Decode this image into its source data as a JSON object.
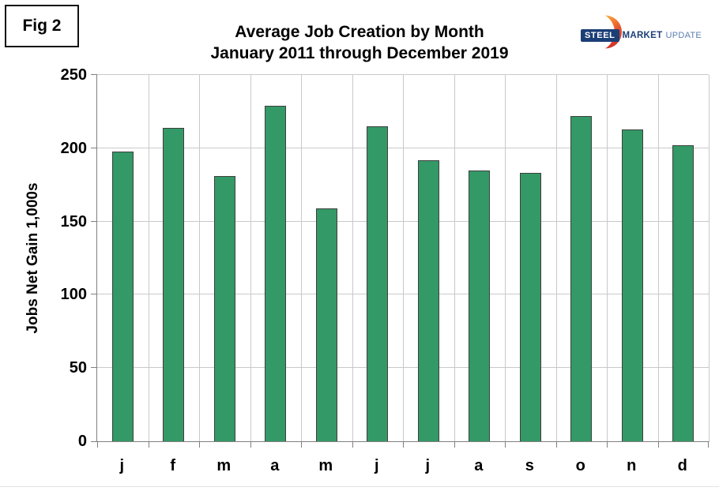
{
  "figure_label": "Fig 2",
  "logo": {
    "steel": "STEEL",
    "market": "MARKET",
    "update": "UPDATE",
    "navy": "#1c3e76",
    "light_blue": "#5b7db1",
    "orange_top": "#f6a63b",
    "orange_bottom": "#cf2d27"
  },
  "chart_data": {
    "type": "bar",
    "title": "Average Job Creation by Month",
    "subtitle": "January 2011 through December 2019",
    "ylabel": "Jobs Net Gain 1,000s",
    "xlabel": "",
    "categories": [
      "j",
      "f",
      "m",
      "a",
      "m",
      "j",
      "j",
      "a",
      "s",
      "o",
      "n",
      "d"
    ],
    "values": [
      198,
      214,
      181,
      229,
      159,
      215,
      192,
      185,
      183,
      222,
      213,
      202
    ],
    "ylim": [
      0,
      250
    ],
    "yticks": [
      0,
      50,
      100,
      150,
      200,
      250
    ],
    "grid": true,
    "legend": "none",
    "bar_color": "#339966",
    "bar_border_color": "#3f3f3f",
    "gridline_color": "#c9c9c9",
    "axis_color": "#808080"
  }
}
